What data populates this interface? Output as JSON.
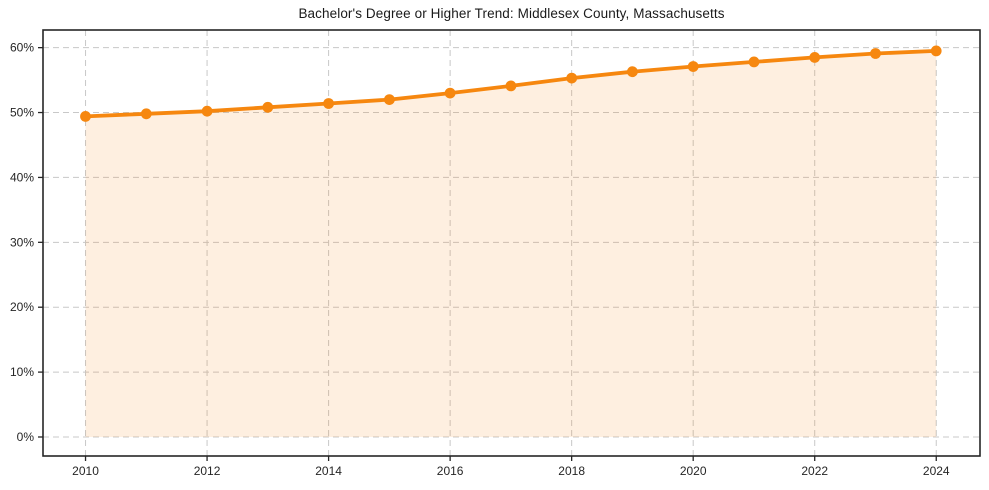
{
  "chart_data": {
    "type": "area",
    "title": "Bachelor's Degree or Higher Trend: Middlesex County, Massachusetts",
    "x": [
      2010,
      2011,
      2012,
      2013,
      2014,
      2015,
      2016,
      2017,
      2018,
      2019,
      2020,
      2021,
      2022,
      2023,
      2024
    ],
    "values": [
      49.4,
      49.8,
      50.2,
      50.8,
      51.4,
      52.0,
      53.0,
      54.1,
      55.3,
      56.3,
      57.1,
      57.8,
      58.5,
      59.1,
      59.5
    ],
    "xlabel": "",
    "ylabel": "",
    "xlim": [
      2009.3,
      2024.72
    ],
    "ylim": [
      -2.93,
      62.72
    ],
    "x_ticks": [
      2010,
      2012,
      2014,
      2016,
      2018,
      2020,
      2022,
      2024
    ],
    "x_tick_labels": [
      "2010",
      "2012",
      "2014",
      "2016",
      "2018",
      "2020",
      "2022",
      "2024"
    ],
    "y_ticks": [
      0,
      10,
      20,
      30,
      40,
      50,
      60
    ],
    "y_tick_labels": [
      "0%",
      "10%",
      "20%",
      "30%",
      "40%",
      "50%",
      "60%"
    ],
    "grid": true,
    "grid_style": "dashed",
    "legend": false,
    "fill_baseline": 0,
    "fill_opacity": 0.13,
    "colors": {
      "line": "#f6870f",
      "marker": "#f6870f",
      "fill": "#f6870f",
      "grid": "#c8c8c8",
      "spine": "#262626",
      "tick": "#262626",
      "tick_label": "#262626",
      "title": "#1a1a1a",
      "background": "#ffffff"
    }
  }
}
